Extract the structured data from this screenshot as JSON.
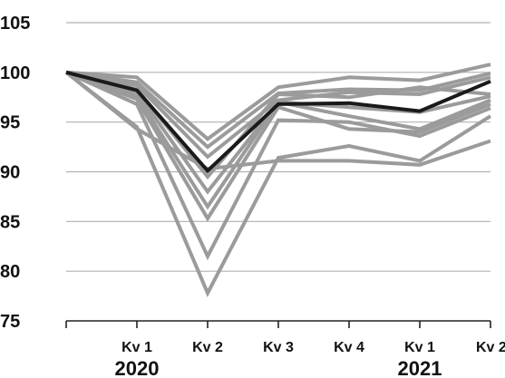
{
  "chart_data": {
    "type": "line",
    "title": "",
    "xlabel": "",
    "ylabel": "",
    "ylim": [
      75,
      105
    ],
    "yticks": [
      "105",
      "100",
      "95",
      "90",
      "85",
      "80",
      "75"
    ],
    "ytick_values": [
      105,
      100,
      95,
      90,
      85,
      80,
      75
    ],
    "categories": [
      "",
      "Kv 1",
      "Kv 2",
      "Kv 3",
      "Kv 4",
      "Kv 1",
      "Kv 2"
    ],
    "year_labels": [
      {
        "text": "2020",
        "category_index": 1
      },
      {
        "text": "2021",
        "category_index": 5
      }
    ],
    "grid": "horizontal",
    "legend": "none",
    "colors": {
      "gray_series": "#9b9b9b",
      "highlight_series": "#1a1a1a",
      "grid": "#b0b0b0",
      "axis": "#222222"
    },
    "series": [
      {
        "values": [
          100,
          99.5,
          93.3,
          98.5,
          99.5,
          99.2,
          100.8
        ]
      },
      {
        "values": [
          100,
          99.0,
          92.5,
          97.9,
          98.3,
          98.2,
          99.9
        ]
      },
      {
        "values": [
          100,
          98.7,
          91.5,
          97.2,
          98.0,
          97.8,
          99.5
        ]
      },
      {
        "values": [
          100,
          98.3,
          89.5,
          97.8,
          97.5,
          98.5,
          97.8
        ]
      },
      {
        "values": [
          100,
          98.0,
          88.0,
          97.0,
          96.5,
          96.0,
          97.6
        ]
      },
      {
        "values": [
          100,
          97.6,
          86.5,
          97.0,
          95.6,
          94.3,
          97.2
        ]
      },
      {
        "values": [
          100,
          97.3,
          85.3,
          96.5,
          94.3,
          94.0,
          96.8
        ]
      },
      {
        "values": [
          100,
          96.8,
          81.5,
          95.2,
          95.0,
          93.6,
          96.4
        ]
      },
      {
        "values": [
          100,
          94.5,
          77.8,
          91.4,
          92.6,
          91.1,
          95.6
        ]
      },
      {
        "values": [
          100,
          94.3,
          90.3,
          91.1,
          91.1,
          90.7,
          93.1
        ]
      },
      {
        "highlight": true,
        "values": [
          100,
          98.2,
          90.1,
          96.8,
          96.9,
          96.1,
          99.1
        ]
      }
    ]
  }
}
